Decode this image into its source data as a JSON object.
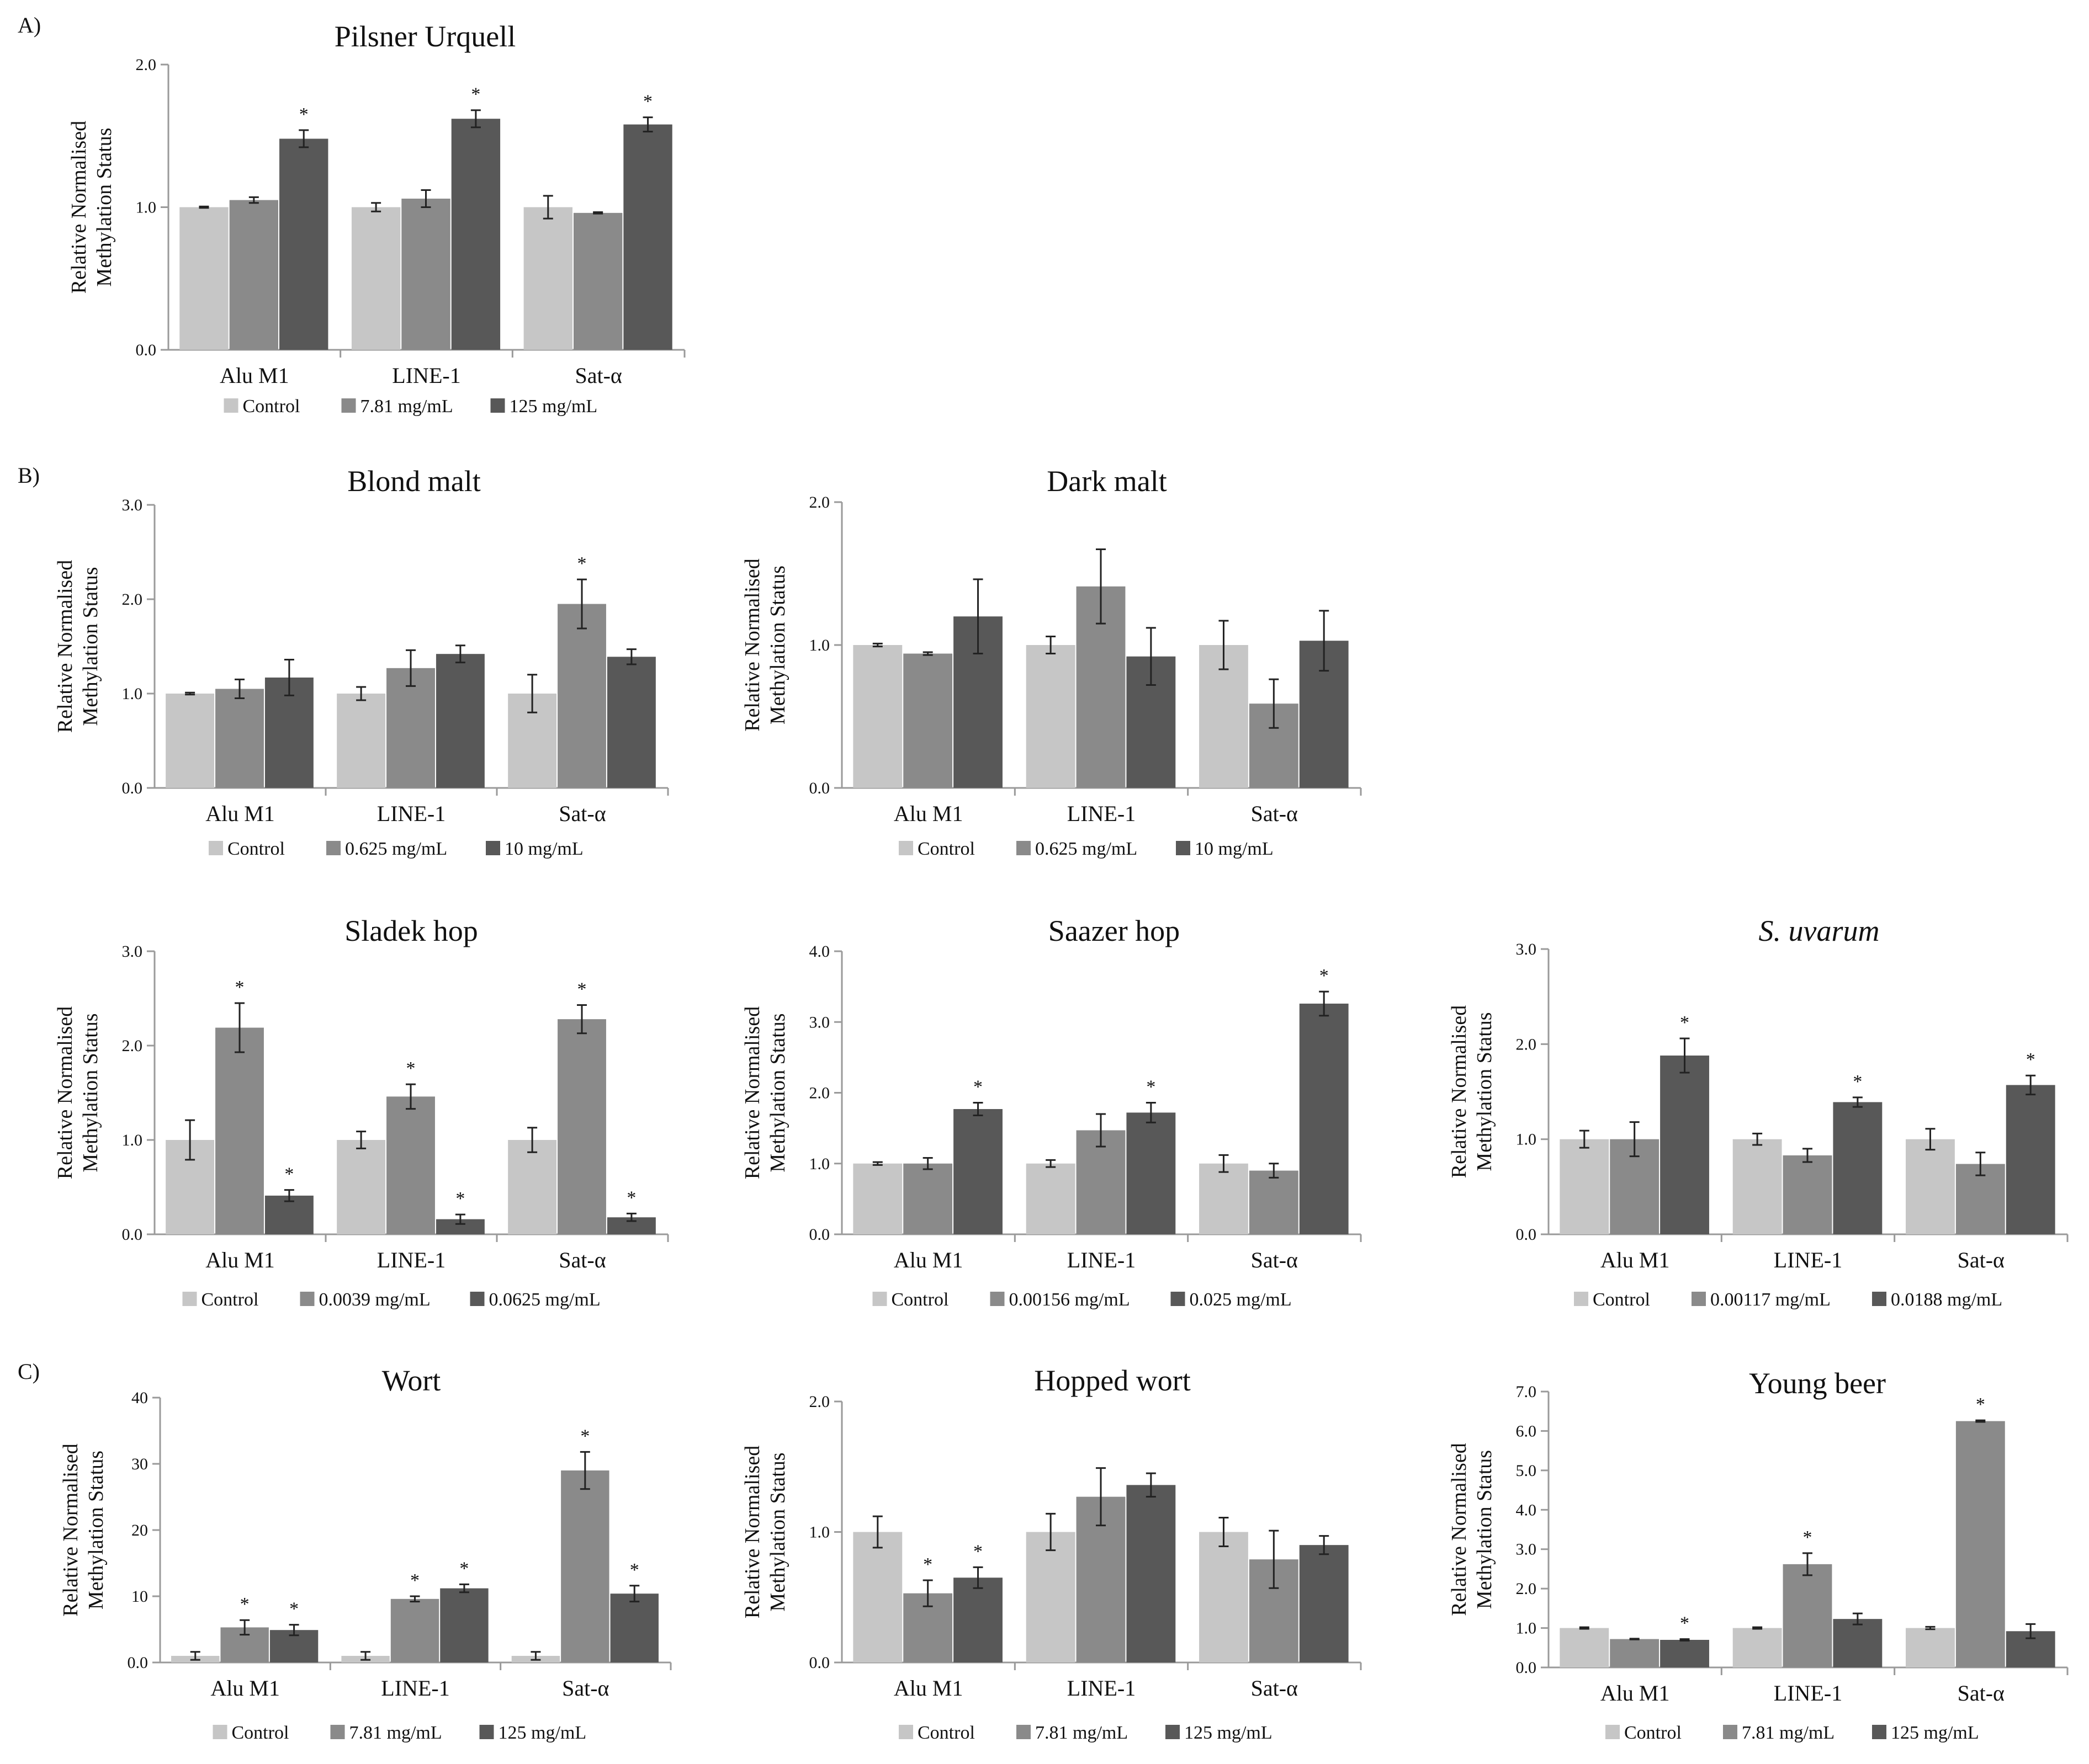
{
  "sections": [
    {
      "label": "A)"
    },
    {
      "label": "B)"
    },
    {
      "label": "C)"
    }
  ],
  "colors": {
    "Control": "#c6c6c6",
    "low": "#8a8a8a",
    "high": "#585858",
    "axis": "#9a9a9a",
    "error": "#222222"
  },
  "ylabel_lines": [
    "Relative Normalised",
    "Methylation Status"
  ],
  "chart_data": [
    {
      "id": "pilsner",
      "type": "bar",
      "title": "Pilsner Urquell",
      "italic": false,
      "categories": [
        "Alu M1",
        "LINE-1",
        "Sat-α"
      ],
      "ylim": [
        0,
        2.0
      ],
      "yticks": [
        "0.0",
        "1.0",
        "2.0"
      ],
      "series": [
        {
          "name": "Control",
          "values": [
            1.0,
            1.0,
            1.0
          ],
          "err": [
            0.005,
            0.03,
            0.08
          ],
          "sig": [
            false,
            false,
            false
          ]
        },
        {
          "name": "7.81 mg/mL",
          "values": [
            1.05,
            1.06,
            0.96
          ],
          "err": [
            0.02,
            0.06,
            0.005
          ],
          "sig": [
            false,
            false,
            false
          ]
        },
        {
          "name": "125 mg/mL",
          "values": [
            1.48,
            1.62,
            1.58
          ],
          "err": [
            0.06,
            0.06,
            0.05
          ],
          "sig": [
            true,
            true,
            true
          ]
        }
      ]
    },
    {
      "id": "blond",
      "type": "bar",
      "title": "Blond malt",
      "italic": false,
      "categories": [
        "Alu M1",
        "LINE-1",
        "Sat-α"
      ],
      "ylim": [
        0,
        3.0
      ],
      "yticks": [
        "0.0",
        "1.0",
        "2.0",
        "3.0"
      ],
      "series": [
        {
          "name": "Control",
          "values": [
            1.0,
            1.0,
            1.0
          ],
          "err": [
            0.01,
            0.07,
            0.2
          ],
          "sig": [
            false,
            false,
            false
          ]
        },
        {
          "name": "0.625 mg/mL",
          "values": [
            1.05,
            1.27,
            1.95
          ],
          "err": [
            0.1,
            0.19,
            0.26
          ],
          "sig": [
            false,
            false,
            true
          ]
        },
        {
          "name": "10 mg/mL",
          "values": [
            1.17,
            1.42,
            1.39
          ],
          "err": [
            0.19,
            0.09,
            0.08
          ],
          "sig": [
            false,
            false,
            false
          ]
        }
      ]
    },
    {
      "id": "dark",
      "type": "bar",
      "title": "Dark malt",
      "italic": false,
      "categories": [
        "Alu M1",
        "LINE-1",
        "Sat-α"
      ],
      "ylim": [
        0,
        2.0
      ],
      "yticks": [
        "0.0",
        "1.0",
        "2.0"
      ],
      "series": [
        {
          "name": "Control",
          "values": [
            1.0,
            1.0,
            1.0
          ],
          "err": [
            0.01,
            0.06,
            0.17
          ],
          "sig": [
            false,
            false,
            false
          ]
        },
        {
          "name": "0.625 mg/mL",
          "values": [
            0.94,
            1.41,
            0.59
          ],
          "err": [
            0.01,
            0.26,
            0.17
          ],
          "sig": [
            false,
            false,
            false
          ]
        },
        {
          "name": "10 mg/mL",
          "values": [
            1.2,
            0.92,
            1.03
          ],
          "err": [
            0.26,
            0.2,
            0.21
          ],
          "sig": [
            false,
            false,
            false
          ]
        }
      ]
    },
    {
      "id": "sladek",
      "type": "bar",
      "title": "Sladek hop",
      "italic": false,
      "categories": [
        "Alu M1",
        "LINE-1",
        "Sat-α"
      ],
      "ylim": [
        0,
        3.0
      ],
      "yticks": [
        "0.0",
        "1.0",
        "2.0",
        "3.0"
      ],
      "series": [
        {
          "name": "Control",
          "values": [
            1.0,
            1.0,
            1.0
          ],
          "err": [
            0.21,
            0.09,
            0.13
          ],
          "sig": [
            false,
            false,
            false
          ]
        },
        {
          "name": "0.0039 mg/mL",
          "values": [
            2.19,
            1.46,
            2.28
          ],
          "err": [
            0.26,
            0.13,
            0.15
          ],
          "sig": [
            true,
            true,
            true
          ]
        },
        {
          "name": "0.0625 mg/mL",
          "values": [
            0.41,
            0.16,
            0.18
          ],
          "err": [
            0.06,
            0.05,
            0.04
          ],
          "sig": [
            true,
            true,
            true
          ]
        }
      ]
    },
    {
      "id": "saazer",
      "type": "bar",
      "title": "Saazer hop",
      "italic": false,
      "categories": [
        "Alu M1",
        "LINE-1",
        "Sat-α"
      ],
      "ylim": [
        0,
        4.0
      ],
      "yticks": [
        "0.0",
        "1.0",
        "2.0",
        "3.0",
        "4.0"
      ],
      "series": [
        {
          "name": "Control",
          "values": [
            1.0,
            1.0,
            1.0
          ],
          "err": [
            0.02,
            0.05,
            0.12
          ],
          "sig": [
            false,
            false,
            false
          ]
        },
        {
          "name": "0.00156 mg/mL",
          "values": [
            1.0,
            1.47,
            0.9
          ],
          "err": [
            0.08,
            0.23,
            0.1
          ],
          "sig": [
            false,
            false,
            false
          ]
        },
        {
          "name": "0.025 mg/mL",
          "values": [
            1.77,
            1.72,
            3.26
          ],
          "err": [
            0.09,
            0.14,
            0.17
          ],
          "sig": [
            true,
            true,
            true
          ]
        }
      ]
    },
    {
      "id": "uvarum",
      "type": "bar",
      "title": "S. uvarum",
      "italic": true,
      "categories": [
        "Alu M1",
        "LINE-1",
        "Sat-α"
      ],
      "ylim": [
        0,
        3.0
      ],
      "yticks": [
        "0.0",
        "1.0",
        "2.0",
        "3.0"
      ],
      "series": [
        {
          "name": "Control",
          "values": [
            1.0,
            1.0,
            1.0
          ],
          "err": [
            0.09,
            0.06,
            0.11
          ],
          "sig": [
            false,
            false,
            false
          ]
        },
        {
          "name": "0.00117 mg/mL",
          "values": [
            1.0,
            0.83,
            0.74
          ],
          "err": [
            0.18,
            0.07,
            0.12
          ],
          "sig": [
            false,
            false,
            false
          ]
        },
        {
          "name": "0.0188 mg/mL",
          "values": [
            1.88,
            1.39,
            1.57
          ],
          "err": [
            0.18,
            0.05,
            0.1
          ],
          "sig": [
            true,
            true,
            true
          ]
        }
      ]
    },
    {
      "id": "wort",
      "type": "bar",
      "title": "Wort",
      "italic": false,
      "categories": [
        "Alu M1",
        "LINE-1",
        "Sat-α"
      ],
      "ylim": [
        0,
        40
      ],
      "yticks": [
        "0.0",
        "10",
        "20",
        "30",
        "40"
      ],
      "series": [
        {
          "name": "Control",
          "values": [
            1.0,
            1.0,
            1.0
          ],
          "err": [
            0.6,
            0.6,
            0.6
          ],
          "sig": [
            false,
            false,
            false
          ]
        },
        {
          "name": "7.81 mg/mL",
          "values": [
            5.3,
            9.6,
            29.0
          ],
          "err": [
            1.1,
            0.4,
            2.8
          ],
          "sig": [
            true,
            true,
            true
          ]
        },
        {
          "name": "125 mg/mL",
          "values": [
            4.9,
            11.2,
            10.4
          ],
          "err": [
            0.8,
            0.6,
            1.2
          ],
          "sig": [
            true,
            true,
            true
          ]
        }
      ]
    },
    {
      "id": "hopped",
      "type": "bar",
      "title": "Hopped wort",
      "italic": false,
      "categories": [
        "Alu M1",
        "LINE-1",
        "Sat-α"
      ],
      "ylim": [
        0,
        2.0
      ],
      "yticks": [
        "0.0",
        "1.0",
        "2.0"
      ],
      "series": [
        {
          "name": "Control",
          "values": [
            1.0,
            1.0,
            1.0
          ],
          "err": [
            0.12,
            0.14,
            0.11
          ],
          "sig": [
            false,
            false,
            false
          ]
        },
        {
          "name": "7.81 mg/mL",
          "values": [
            0.53,
            1.27,
            0.79
          ],
          "err": [
            0.1,
            0.22,
            0.22
          ],
          "sig": [
            true,
            false,
            false
          ]
        },
        {
          "name": "125 mg/mL",
          "values": [
            0.65,
            1.36,
            0.9
          ],
          "err": [
            0.08,
            0.09,
            0.07
          ],
          "sig": [
            true,
            false,
            false
          ]
        }
      ]
    },
    {
      "id": "young",
      "type": "bar",
      "title": "Young beer",
      "italic": false,
      "categories": [
        "Alu M1",
        "LINE-1",
        "Sat-α"
      ],
      "ylim": [
        0,
        7.0
      ],
      "yticks": [
        "0.0",
        "1.0",
        "2.0",
        "3.0",
        "4.0",
        "5.0",
        "6.0",
        "7.0"
      ],
      "series": [
        {
          "name": "Control",
          "values": [
            1.0,
            1.0,
            1.0
          ],
          "err": [
            0.02,
            0.02,
            0.03
          ],
          "sig": [
            false,
            false,
            false
          ]
        },
        {
          "name": "7.81 mg/mL",
          "values": [
            0.72,
            2.62,
            6.25
          ],
          "err": [
            0.01,
            0.28,
            0.02
          ],
          "sig": [
            false,
            true,
            true
          ]
        },
        {
          "name": "125 mg/mL",
          "values": [
            0.7,
            1.23,
            0.92
          ],
          "err": [
            0.02,
            0.14,
            0.18
          ],
          "sig": [
            true,
            false,
            false
          ]
        }
      ]
    }
  ]
}
